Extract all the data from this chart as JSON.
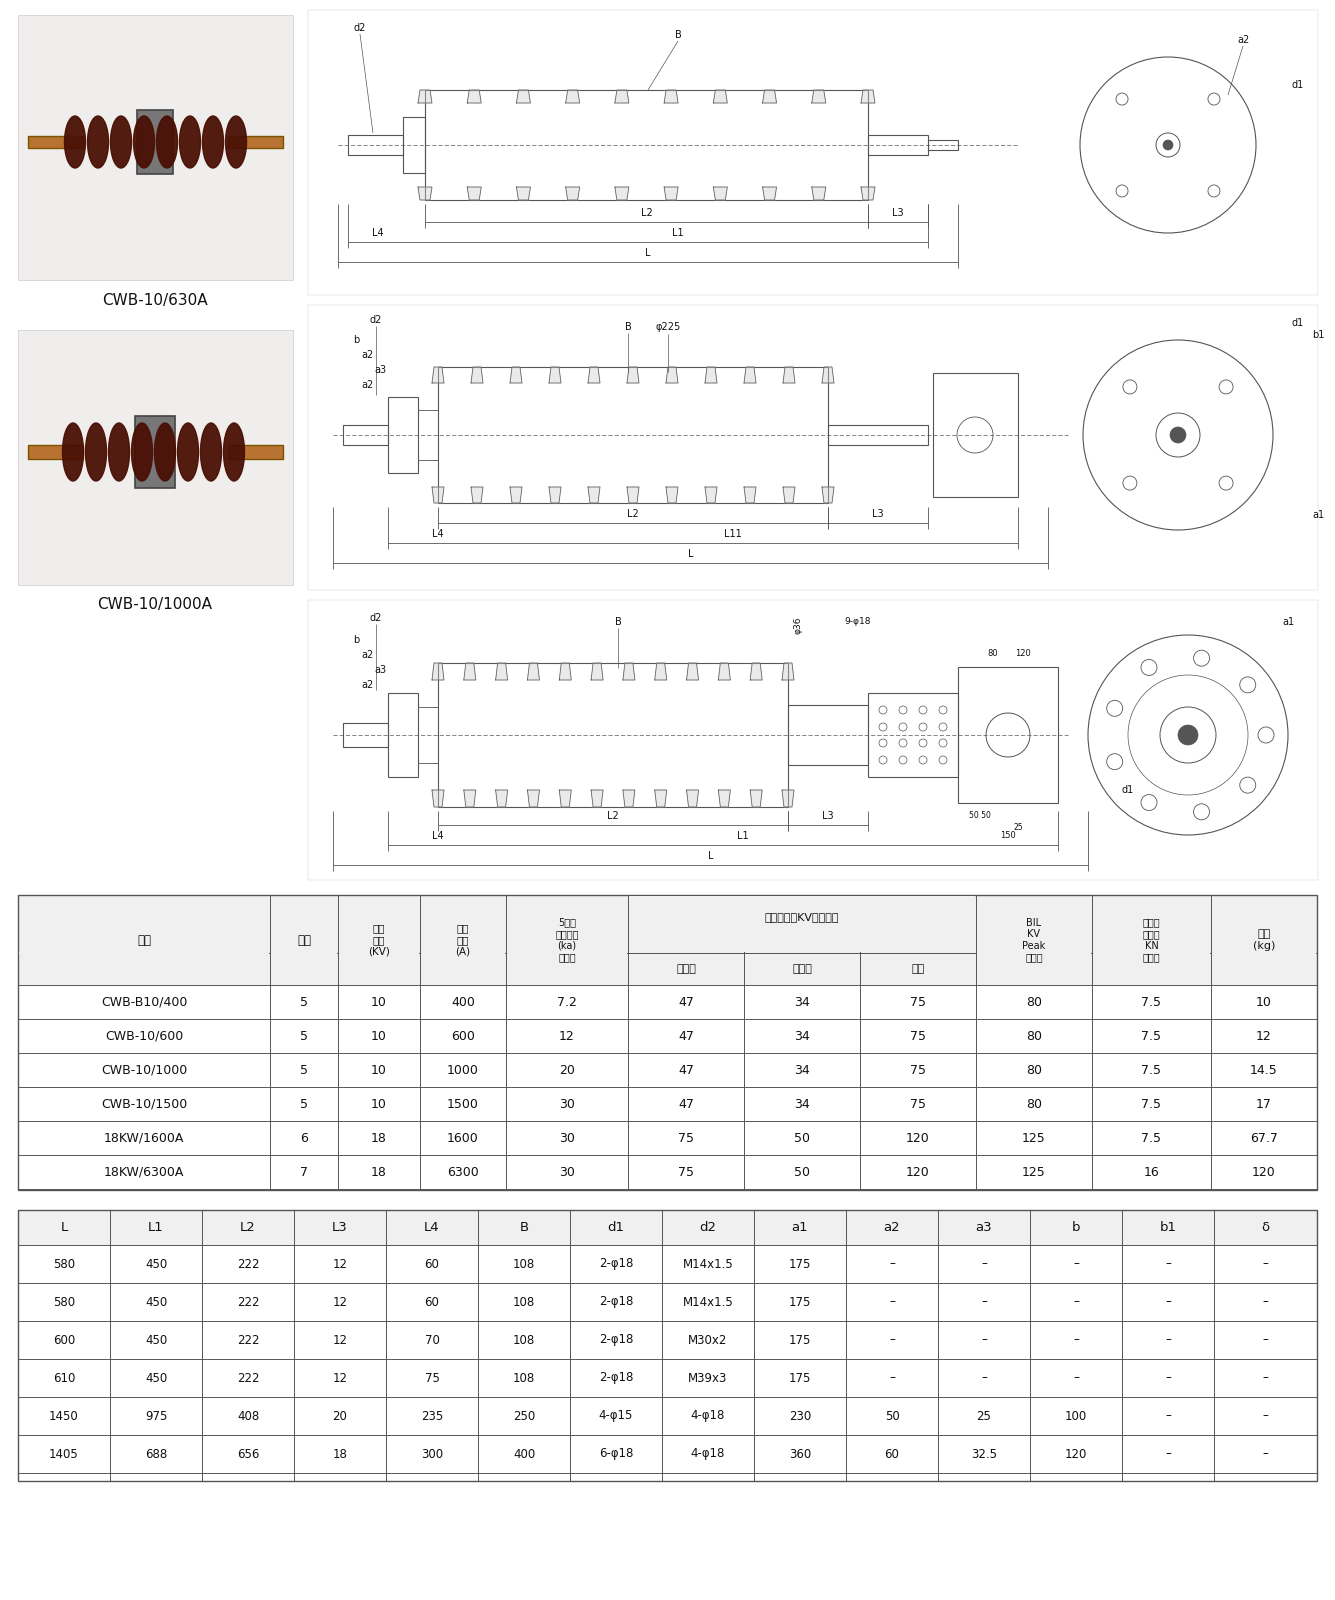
{
  "bg_color": "#ffffff",
  "photo1_label": "CWB-10/630A",
  "photo2_label": "CWB-10/1000A",
  "table1_data": [
    [
      "CWB-B10/400",
      "5",
      "10",
      "400",
      "7.2",
      "47",
      "34",
      "75",
      "80",
      "7.5",
      "10"
    ],
    [
      "CWB-10/600",
      "5",
      "10",
      "600",
      "12",
      "47",
      "34",
      "75",
      "80",
      "7.5",
      "12"
    ],
    [
      "CWB-10/1000",
      "5",
      "10",
      "1000",
      "20",
      "47",
      "34",
      "75",
      "80",
      "7.5",
      "14.5"
    ],
    [
      "CWB-10/1500",
      "5",
      "10",
      "1500",
      "30",
      "47",
      "34",
      "75",
      "80",
      "7.5",
      "17"
    ],
    [
      "18KW/1600A",
      "6",
      "18",
      "1600",
      "30",
      "75",
      "50",
      "120",
      "125",
      "7.5",
      "67.7"
    ],
    [
      "18KW/6300A",
      "7",
      "18",
      "6300",
      "30",
      "75",
      "50",
      "120",
      "125",
      "16",
      "120"
    ]
  ],
  "table2_col_headers": [
    "L",
    "L1",
    "L2",
    "L3",
    "L4",
    "B",
    "d1",
    "d2",
    "a1",
    "a2",
    "a3",
    "b",
    "b1",
    "δ"
  ],
  "table2_data": [
    [
      "580",
      "450",
      "222",
      "12",
      "60",
      "108",
      "2-φ18",
      "M14x1.5",
      "175",
      "–",
      "–",
      "–",
      "–",
      "–"
    ],
    [
      "580",
      "450",
      "222",
      "12",
      "60",
      "108",
      "2-φ18",
      "M14x1.5",
      "175",
      "–",
      "–",
      "–",
      "–",
      "–"
    ],
    [
      "600",
      "450",
      "222",
      "12",
      "70",
      "108",
      "2-φ18",
      "M30x2",
      "175",
      "–",
      "–",
      "–",
      "–",
      "–"
    ],
    [
      "610",
      "450",
      "222",
      "12",
      "75",
      "108",
      "2-φ18",
      "M39x3",
      "175",
      "–",
      "–",
      "–",
      "–",
      "–"
    ],
    [
      "1450",
      "975",
      "408",
      "20",
      "235",
      "250",
      "4-φ15",
      "4-φ18",
      "230",
      "50",
      "25",
      "100",
      "–",
      "–"
    ],
    [
      "1405",
      "688",
      "656",
      "18",
      "300",
      "400",
      "6-φ18",
      "4-φ18",
      "360",
      "60",
      "32.5",
      "120",
      "–",
      "–"
    ]
  ],
  "line_color": "#555555",
  "text_color": "#111111"
}
